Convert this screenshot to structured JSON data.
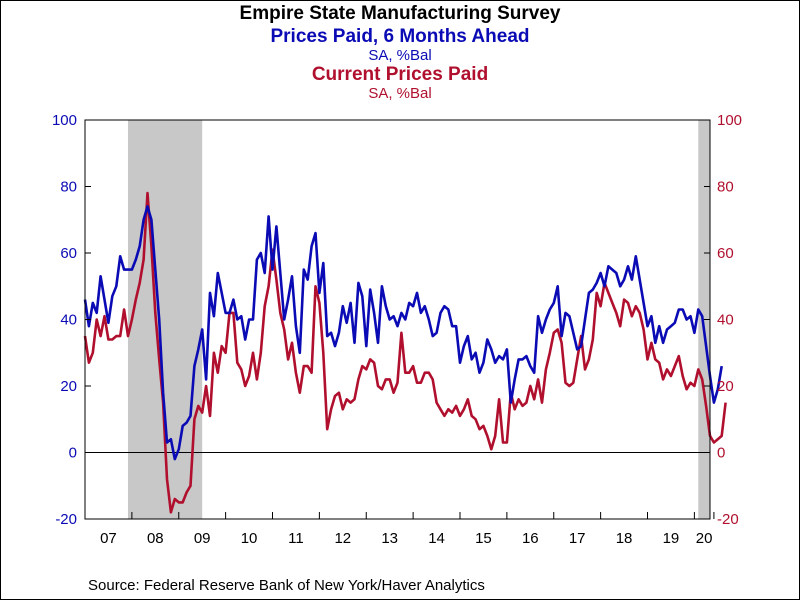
{
  "chart_data": {
    "type": "line",
    "title": "Empire State Manufacturing Survey",
    "source": "Source:  Federal Reserve Bank of New York/Haver Analytics",
    "x_tick_labels": [
      "07",
      "08",
      "09",
      "10",
      "11",
      "12",
      "13",
      "14",
      "15",
      "16",
      "17",
      "18",
      "19",
      "20"
    ],
    "x_start_year": 2007,
    "xlim": [
      "2007-01",
      "2020-05"
    ],
    "ylim_left": [
      -20,
      100
    ],
    "ylim_right": [
      -20,
      100
    ],
    "y_ticks": [
      -20,
      0,
      20,
      40,
      60,
      80,
      100
    ],
    "zero_line": true,
    "grid": false,
    "recessions": [
      {
        "start": "2007-12",
        "end": "2009-06"
      },
      {
        "start": "2020-02",
        "end": "2020-05"
      }
    ],
    "series": [
      {
        "name": "Prices Paid, 6 Months Ahead",
        "units": "SA, %Bal",
        "axis": "left",
        "color": "#0b0bb5",
        "values": [
          46,
          38,
          45,
          42,
          53,
          46,
          39,
          47,
          50,
          59,
          55,
          55,
          55,
          58,
          62,
          70,
          74,
          70,
          55,
          40,
          18,
          3,
          4,
          -2,
          1,
          8,
          9,
          11,
          26,
          31,
          37,
          22,
          48,
          41,
          54,
          48,
          42,
          42,
          46,
          40,
          41,
          34,
          40,
          40,
          58,
          60,
          54,
          71,
          55,
          68,
          54,
          40,
          46,
          53,
          38,
          30,
          55,
          52,
          62,
          66,
          48,
          57,
          35,
          36,
          32,
          36,
          44,
          39,
          45,
          33,
          51,
          47,
          32,
          49,
          42,
          33,
          50,
          44,
          40,
          41,
          38,
          42,
          40,
          45,
          44,
          48,
          42,
          44,
          40,
          35,
          36,
          42,
          44,
          43,
          38,
          38,
          27,
          32,
          35,
          28,
          30,
          24,
          27,
          34,
          31,
          27,
          29,
          28,
          31,
          15,
          22,
          28,
          28,
          29,
          26,
          24,
          41,
          36,
          40,
          43,
          45,
          50,
          35,
          42,
          41,
          36,
          31,
          32,
          40,
          48,
          49,
          51,
          54,
          50,
          56,
          55,
          54,
          50,
          52,
          56,
          52,
          59,
          52,
          45,
          38,
          41,
          33,
          38,
          33,
          37,
          38,
          39,
          43,
          43,
          40,
          41,
          36,
          43,
          41,
          32,
          23,
          15,
          19,
          26
        ]
      },
      {
        "name": "Current Prices Paid",
        "units": "SA, %Bal",
        "axis": "right",
        "color": "#b0102e",
        "values": [
          35,
          27,
          30,
          40,
          35,
          41,
          34,
          34,
          35,
          35,
          43,
          35,
          40,
          46,
          51,
          58,
          78,
          62,
          42,
          28,
          15,
          -8,
          -18,
          -14,
          -15,
          -15,
          -12,
          -10,
          10,
          14,
          12,
          20,
          11,
          30,
          24,
          32,
          30,
          42,
          42,
          27,
          25,
          20,
          23,
          30,
          22,
          30,
          44,
          50,
          61,
          52,
          42,
          37,
          28,
          33,
          24,
          18,
          26,
          26,
          24,
          50,
          45,
          30,
          7,
          13,
          17,
          18,
          13,
          16,
          15,
          16,
          22,
          26,
          25,
          28,
          27,
          20,
          19,
          22,
          22,
          18,
          21,
          36,
          24,
          24,
          26,
          21,
          21,
          24,
          24,
          22,
          15,
          13,
          11,
          13,
          12,
          14,
          11,
          13,
          16,
          11,
          10,
          7,
          8,
          5,
          1,
          5,
          16,
          3,
          3,
          18,
          13,
          16,
          14,
          15,
          20,
          16,
          22,
          15,
          25,
          30,
          36,
          37,
          33,
          21,
          20,
          21,
          28,
          35,
          25,
          28,
          34,
          48,
          44,
          51,
          48,
          45,
          42,
          38,
          46,
          45,
          41,
          44,
          42,
          37,
          28,
          33,
          28,
          27,
          22,
          25,
          23,
          26,
          29,
          23,
          19,
          21,
          20,
          25,
          22,
          14,
          5,
          3,
          4,
          5,
          15
        ]
      }
    ]
  }
}
